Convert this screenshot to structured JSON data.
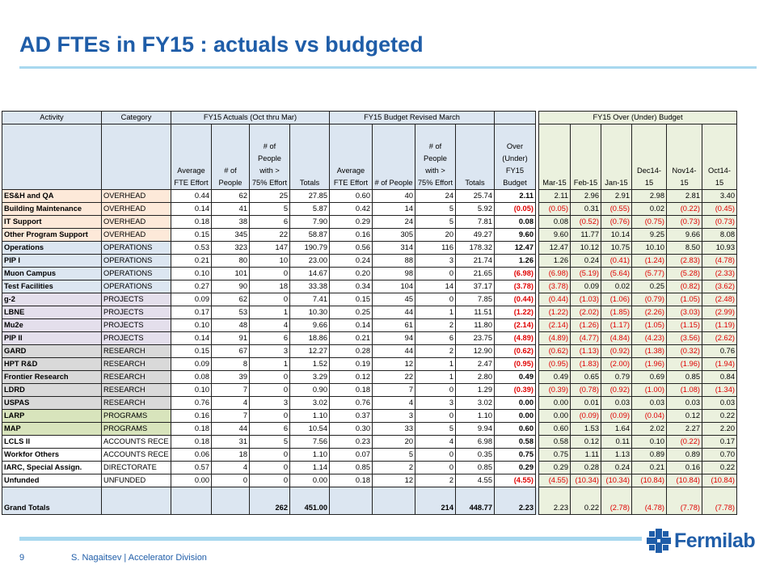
{
  "slide": {
    "title": "AD FTEs in FY15 : actuals vs budgeted",
    "page_number": "9",
    "footer": "S. Nagaitsev | Accelerator Division",
    "logo_text": "Fermilab",
    "colors": {
      "title": "#1f5da8",
      "rule": "#a8d8ef",
      "negative": "#e00000"
    }
  },
  "table": {
    "group_headers": {
      "activity": "Activity",
      "category": "Category",
      "actuals": "FY15 Actuals (Oct thru Mar)",
      "budget": "FY15 Budget Revised March",
      "over_budget": "FY15 Over (Under) Budget"
    },
    "sub_headers": {
      "act_avg": "Average FTE Effort",
      "act_people": "# of People",
      "act_75": "# of People with > 75% Effort",
      "act_tot": "Totals",
      "bud_avg": "Average FTE Effort",
      "bud_people": "# of People",
      "bud_75": "# of People with > 75% Effort",
      "bud_tot": "Totals",
      "over": "Over (Under) FY15 Budget",
      "m1": "Mar-15",
      "m2": "Feb-15",
      "m3": "Jan-15",
      "m4": "Dec14-15",
      "m5": "Nov14-15",
      "m6": "Oct14-15"
    },
    "rows": [
      {
        "group": "ovh",
        "activity": "ES&H and QA",
        "category": "OVERHEAD",
        "a_avg": "0.44",
        "a_ppl": "62",
        "a_75": "25",
        "a_tot": "27.85",
        "b_avg": "0.60",
        "b_ppl": "40",
        "b_75": "24",
        "b_tot": "25.74",
        "over": "2.11",
        "m": [
          "2.11",
          "2.96",
          "2.91",
          "2.98",
          "2.81",
          "3.40"
        ]
      },
      {
        "group": "ovh",
        "activity": "Building Maintenance",
        "category": "OVERHEAD",
        "a_avg": "0.14",
        "a_ppl": "41",
        "a_75": "5",
        "a_tot": "5.87",
        "b_avg": "0.42",
        "b_ppl": "14",
        "b_75": "5",
        "b_tot": "5.92",
        "over": "(0.05)",
        "m": [
          "(0.05)",
          "0.31",
          "(0.55)",
          "0.02",
          "(0.22)",
          "(0.45)"
        ]
      },
      {
        "group": "ovh",
        "activity": "IT Support",
        "category": "OVERHEAD",
        "a_avg": "0.18",
        "a_ppl": "38",
        "a_75": "6",
        "a_tot": "7.90",
        "b_avg": "0.29",
        "b_ppl": "24",
        "b_75": "5",
        "b_tot": "7.81",
        "over": "0.08",
        "m": [
          "0.08",
          "(0.52)",
          "(0.76)",
          "(0.75)",
          "(0.73)",
          "(0.73)"
        ]
      },
      {
        "group": "ovh",
        "activity": "Other Program Support",
        "category": "OVERHEAD",
        "a_avg": "0.15",
        "a_ppl": "345",
        "a_75": "22",
        "a_tot": "58.87",
        "b_avg": "0.16",
        "b_ppl": "305",
        "b_75": "20",
        "b_tot": "49.27",
        "over": "9.60",
        "m": [
          "9.60",
          "11.77",
          "10.14",
          "9.25",
          "9.66",
          "8.08"
        ]
      },
      {
        "group": "ops",
        "activity": "Operations",
        "category": "OPERATIONS",
        "a_avg": "0.53",
        "a_ppl": "323",
        "a_75": "147",
        "a_tot": "190.79",
        "b_avg": "0.56",
        "b_ppl": "314",
        "b_75": "116",
        "b_tot": "178.32",
        "over": "12.47",
        "m": [
          "12.47",
          "10.12",
          "10.75",
          "10.10",
          "8.50",
          "10.93"
        ]
      },
      {
        "group": "ops",
        "activity": "PIP I",
        "category": "OPERATIONS",
        "a_avg": "0.21",
        "a_ppl": "80",
        "a_75": "10",
        "a_tot": "23.00",
        "b_avg": "0.24",
        "b_ppl": "88",
        "b_75": "3",
        "b_tot": "21.74",
        "over": "1.26",
        "m": [
          "1.26",
          "0.24",
          "(0.41)",
          "(1.24)",
          "(2.83)",
          "(4.78)"
        ]
      },
      {
        "group": "ops",
        "activity": "Muon Campus",
        "category": "OPERATIONS",
        "a_avg": "0.10",
        "a_ppl": "101",
        "a_75": "0",
        "a_tot": "14.67",
        "b_avg": "0.20",
        "b_ppl": "98",
        "b_75": "0",
        "b_tot": "21.65",
        "over": "(6.98)",
        "m": [
          "(6.98)",
          "(5.19)",
          "(5.64)",
          "(5.77)",
          "(5.28)",
          "(2.33)"
        ]
      },
      {
        "group": "ops",
        "activity": "Test Facilities",
        "category": "OPERATIONS",
        "a_avg": "0.27",
        "a_ppl": "90",
        "a_75": "18",
        "a_tot": "33.38",
        "b_avg": "0.34",
        "b_ppl": "104",
        "b_75": "14",
        "b_tot": "37.17",
        "over": "(3.78)",
        "m": [
          "(3.78)",
          "0.09",
          "0.02",
          "0.25",
          "(0.82)",
          "(3.62)"
        ]
      },
      {
        "group": "prj",
        "activity": "g-2",
        "category": "PROJECTS",
        "a_avg": "0.09",
        "a_ppl": "62",
        "a_75": "0",
        "a_tot": "7.41",
        "b_avg": "0.15",
        "b_ppl": "45",
        "b_75": "0",
        "b_tot": "7.85",
        "over": "(0.44)",
        "m": [
          "(0.44)",
          "(1.03)",
          "(1.06)",
          "(0.79)",
          "(1.05)",
          "(2.48)"
        ]
      },
      {
        "group": "prj",
        "activity": "LBNE",
        "category": "PROJECTS",
        "a_avg": "0.17",
        "a_ppl": "53",
        "a_75": "1",
        "a_tot": "10.30",
        "b_avg": "0.25",
        "b_ppl": "44",
        "b_75": "1",
        "b_tot": "11.51",
        "over": "(1.22)",
        "m": [
          "(1.22)",
          "(2.02)",
          "(1.85)",
          "(2.26)",
          "(3.03)",
          "(2.99)"
        ]
      },
      {
        "group": "prj",
        "activity": "Mu2e",
        "category": "PROJECTS",
        "a_avg": "0.10",
        "a_ppl": "48",
        "a_75": "4",
        "a_tot": "9.66",
        "b_avg": "0.14",
        "b_ppl": "61",
        "b_75": "2",
        "b_tot": "11.80",
        "over": "(2.14)",
        "m": [
          "(2.14)",
          "(1.26)",
          "(1.17)",
          "(1.05)",
          "(1.15)",
          "(1.19)"
        ]
      },
      {
        "group": "prj",
        "activity": "PIP II",
        "category": "PROJECTS",
        "a_avg": "0.14",
        "a_ppl": "91",
        "a_75": "6",
        "a_tot": "18.86",
        "b_avg": "0.21",
        "b_ppl": "94",
        "b_75": "6",
        "b_tot": "23.75",
        "over": "(4.89)",
        "m": [
          "(4.89)",
          "(4.77)",
          "(4.84)",
          "(4.23)",
          "(3.56)",
          "(2.62)"
        ]
      },
      {
        "group": "res",
        "activity": "GARD",
        "category": "RESEARCH",
        "a_avg": "0.15",
        "a_ppl": "67",
        "a_75": "3",
        "a_tot": "12.27",
        "b_avg": "0.28",
        "b_ppl": "44",
        "b_75": "2",
        "b_tot": "12.90",
        "over": "(0.62)",
        "m": [
          "(0.62)",
          "(1.13)",
          "(0.92)",
          "(1.38)",
          "(0.32)",
          "0.76"
        ]
      },
      {
        "group": "res",
        "activity": "HPT R&D",
        "category": "RESEARCH",
        "a_avg": "0.09",
        "a_ppl": "8",
        "a_75": "1",
        "a_tot": "1.52",
        "b_avg": "0.19",
        "b_ppl": "12",
        "b_75": "1",
        "b_tot": "2.47",
        "over": "(0.95)",
        "m": [
          "(0.95)",
          "(1.83)",
          "(2.00)",
          "(1.96)",
          "(1.96)",
          "(1.94)"
        ]
      },
      {
        "group": "res",
        "activity": "Frontier Research",
        "category": "RESEARCH",
        "a_avg": "0.08",
        "a_ppl": "39",
        "a_75": "0",
        "a_tot": "3.29",
        "b_avg": "0.12",
        "b_ppl": "22",
        "b_75": "1",
        "b_tot": "2.80",
        "over": "0.49",
        "m": [
          "0.49",
          "0.65",
          "0.79",
          "0.69",
          "0.85",
          "0.84"
        ]
      },
      {
        "group": "res",
        "activity": "LDRD",
        "category": "RESEARCH",
        "a_avg": "0.10",
        "a_ppl": "7",
        "a_75": "0",
        "a_tot": "0.90",
        "b_avg": "0.18",
        "b_ppl": "7",
        "b_75": "0",
        "b_tot": "1.29",
        "over": "(0.39)",
        "m": [
          "(0.39)",
          "(0.78)",
          "(0.92)",
          "(1.00)",
          "(1.08)",
          "(1.34)"
        ]
      },
      {
        "group": "res",
        "activity": "USPAS",
        "category": "RESEARCH",
        "a_avg": "0.76",
        "a_ppl": "4",
        "a_75": "3",
        "a_tot": "3.02",
        "b_avg": "0.76",
        "b_ppl": "4",
        "b_75": "3",
        "b_tot": "3.02",
        "over": "0.00",
        "m": [
          "0.00",
          "0.01",
          "0.03",
          "0.03",
          "0.03",
          "0.03"
        ]
      },
      {
        "group": "prg",
        "activity": "LARP",
        "category": "PROGRAMS",
        "a_avg": "0.16",
        "a_ppl": "7",
        "a_75": "0",
        "a_tot": "1.10",
        "b_avg": "0.37",
        "b_ppl": "3",
        "b_75": "0",
        "b_tot": "1.10",
        "over": "0.00",
        "m": [
          "0.00",
          "(0.09)",
          "(0.09)",
          "(0.04)",
          "0.12",
          "0.22"
        ]
      },
      {
        "group": "prg",
        "activity": "MAP",
        "category": "PROGRAMS",
        "a_avg": "0.18",
        "a_ppl": "44",
        "a_75": "6",
        "a_tot": "10.54",
        "b_avg": "0.30",
        "b_ppl": "33",
        "b_75": "5",
        "b_tot": "9.94",
        "over": "0.60",
        "m": [
          "0.60",
          "1.53",
          "1.64",
          "2.02",
          "2.27",
          "2.20"
        ]
      },
      {
        "group": "acc",
        "activity": "LCLS II",
        "category": "ACCOUNTS RECE",
        "a_avg": "0.18",
        "a_ppl": "31",
        "a_75": "5",
        "a_tot": "7.56",
        "b_avg": "0.23",
        "b_ppl": "20",
        "b_75": "4",
        "b_tot": "6.98",
        "over": "0.58",
        "m": [
          "0.58",
          "0.12",
          "0.11",
          "0.10",
          "(0.22)",
          "0.17"
        ]
      },
      {
        "group": "acc",
        "activity": "Workfor Others",
        "category": "ACCOUNTS RECE",
        "a_avg": "0.06",
        "a_ppl": "18",
        "a_75": "0",
        "a_tot": "1.10",
        "b_avg": "0.07",
        "b_ppl": "5",
        "b_75": "0",
        "b_tot": "0.35",
        "over": "0.75",
        "m": [
          "0.75",
          "1.11",
          "1.13",
          "0.89",
          "0.89",
          "0.70"
        ]
      },
      {
        "group": "dir",
        "activity": "IARC, Special Assign.",
        "category": "DIRECTORATE",
        "a_avg": "0.57",
        "a_ppl": "4",
        "a_75": "0",
        "a_tot": "1.14",
        "b_avg": "0.85",
        "b_ppl": "2",
        "b_75": "0",
        "b_tot": "0.85",
        "over": "0.29",
        "m": [
          "0.29",
          "0.28",
          "0.24",
          "0.21",
          "0.16",
          "0.22"
        ]
      },
      {
        "group": "unf",
        "activity": "Unfunded",
        "category": "UNFUNDED",
        "a_avg": "0.00",
        "a_ppl": "0",
        "a_75": "0",
        "a_tot": "0.00",
        "b_avg": "0.18",
        "b_ppl": "12",
        "b_75": "2",
        "b_tot": "4.55",
        "over": "(4.55)",
        "m": [
          "(4.55)",
          "(10.34)",
          "(10.34)",
          "(10.84)",
          "(10.84)",
          "(10.84)"
        ]
      }
    ],
    "totals": {
      "label": "Grand Totals",
      "a_75": "262",
      "a_tot": "451.00",
      "b_75": "214",
      "b_tot": "448.77",
      "over": "2.23",
      "m": [
        "2.23",
        "0.22",
        "(2.78)",
        "(4.78)",
        "(7.78)",
        "(7.78)"
      ]
    }
  }
}
